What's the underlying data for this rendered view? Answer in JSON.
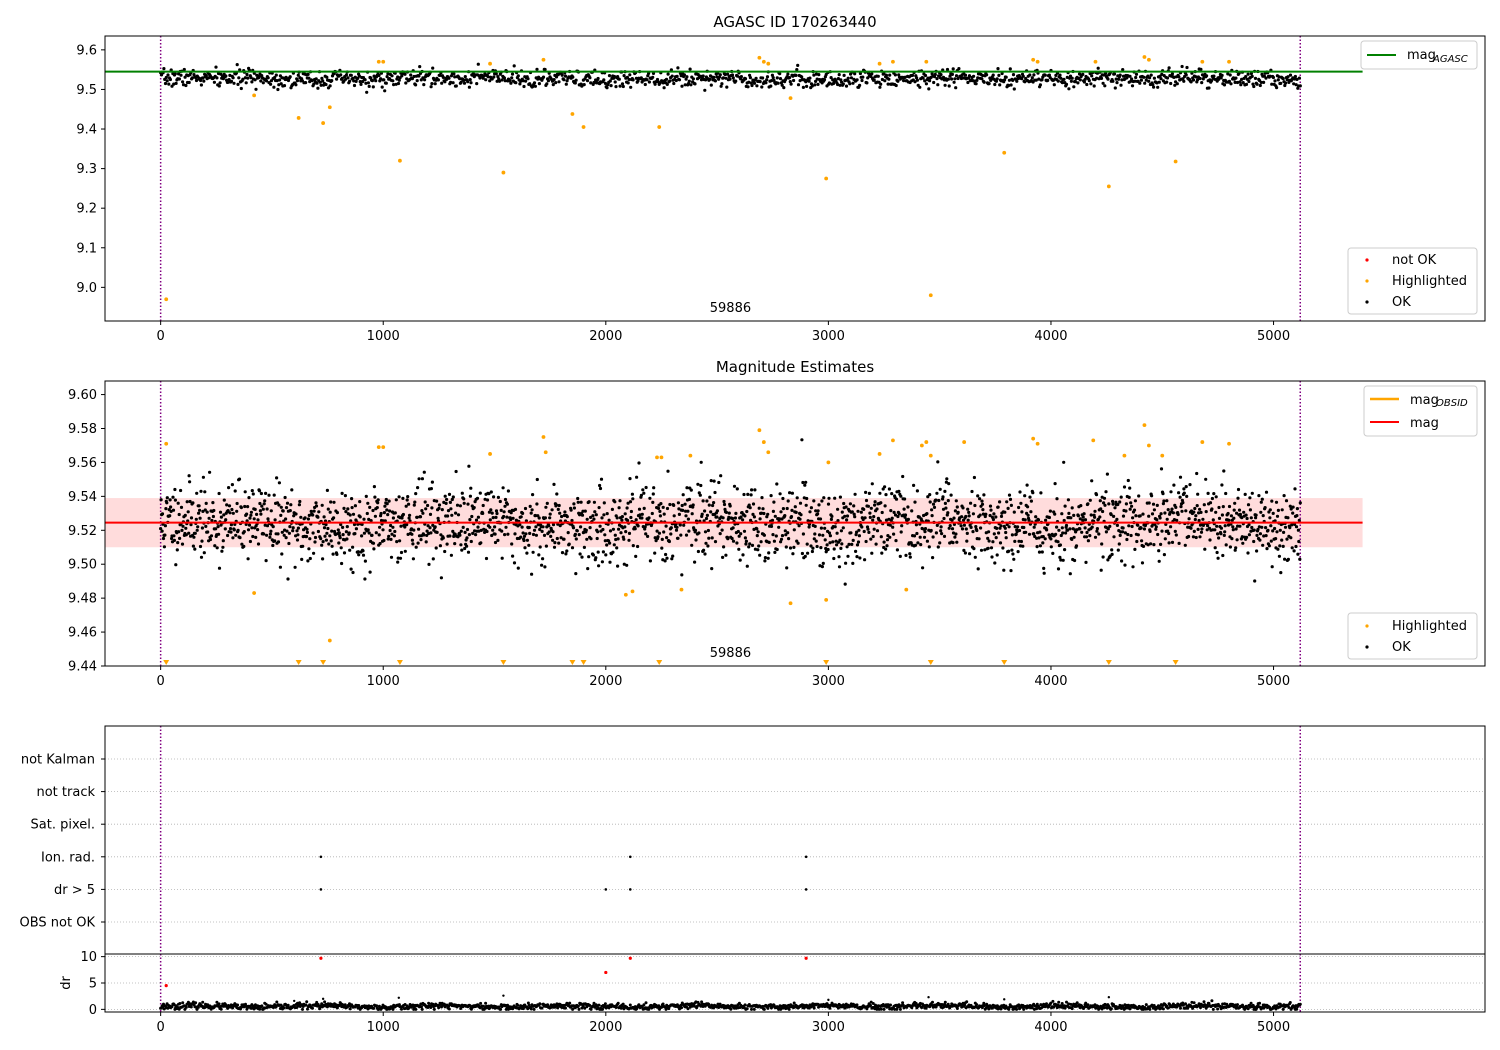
{
  "colors": {
    "ok": "#000000",
    "highlighted": "#ffa500",
    "not_ok": "#ff0000",
    "mag_agasc_line": "#008000",
    "mag_line": "#ff0000",
    "mag_band": "#ffc0c0",
    "obs_boundary": "#800080",
    "grid": "#b0b0b0"
  },
  "chart_data": [
    {
      "type": "scatter",
      "title": "AGASC ID 170263440",
      "xlim": [
        -250,
        5950
      ],
      "ylim": [
        8.915,
        9.635
      ],
      "xticks": [
        0,
        1000,
        2000,
        3000,
        4000,
        5000
      ],
      "yticks": [
        9.0,
        9.1,
        9.2,
        9.3,
        9.4,
        9.5,
        9.6
      ],
      "ytick_labels": [
        "9.0",
        "9.1",
        "9.2",
        "9.3",
        "9.4",
        "9.5",
        "9.6"
      ],
      "obs_boundaries": [
        0,
        5120
      ],
      "obsid_label": "59886",
      "obsid_label_x": 2560,
      "mag_agasc": 9.545,
      "mag_agasc_xrange": [
        -250,
        5400
      ],
      "ok_band": {
        "x_range": [
          0,
          5120
        ],
        "center": 9.527,
        "spread": 0.012,
        "count": 1400,
        "seed": 7
      },
      "highlighted": {
        "x": [
          25,
          420,
          620,
          730,
          760,
          980,
          1000,
          1075,
          1480,
          1540,
          1720,
          1850,
          1900,
          2240,
          2690,
          2710,
          2730,
          2830,
          2990,
          3230,
          3290,
          3440,
          3460,
          3790,
          3920,
          3940,
          4200,
          4260,
          4420,
          4440,
          4560,
          4680,
          4800
        ],
        "y": [
          8.97,
          9.485,
          9.428,
          9.415,
          9.455,
          9.57,
          9.57,
          9.32,
          9.565,
          9.29,
          9.575,
          9.438,
          9.405,
          9.405,
          9.58,
          9.57,
          9.565,
          9.478,
          9.275,
          9.565,
          9.57,
          9.57,
          8.98,
          9.34,
          9.575,
          9.57,
          9.57,
          9.255,
          9.582,
          9.575,
          9.318,
          9.57,
          9.57
        ]
      },
      "legend_lines": [
        {
          "label": "mag",
          "sub": "AGASC",
          "color": "#008000"
        }
      ],
      "legend_points": [
        {
          "label": "not OK",
          "color": "#ff0000"
        },
        {
          "label": "Highlighted",
          "color": "#ffa500"
        },
        {
          "label": "OK",
          "color": "#000000"
        }
      ]
    },
    {
      "type": "scatter",
      "title": "Magnitude Estimates",
      "xlim": [
        -250,
        5950
      ],
      "ylim": [
        9.44,
        9.608
      ],
      "xticks": [
        0,
        1000,
        2000,
        3000,
        4000,
        5000
      ],
      "yticks": [
        9.44,
        9.46,
        9.48,
        9.5,
        9.52,
        9.54,
        9.56,
        9.58,
        9.6
      ],
      "ytick_labels": [
        "9.44",
        "9.46",
        "9.48",
        "9.50",
        "9.52",
        "9.54",
        "9.56",
        "9.58",
        "9.60"
      ],
      "obs_boundaries": [
        0,
        5120
      ],
      "obsid_label": "59886",
      "obsid_label_x": 2560,
      "mag": 9.5245,
      "mag_band": [
        9.51,
        9.539
      ],
      "mag_xrange": [
        -250,
        5400
      ],
      "ok_band": {
        "x_range": [
          0,
          5120
        ],
        "center": 9.524,
        "spread": 0.012,
        "count": 2400,
        "seed": 11
      },
      "highlighted": {
        "x": [
          25,
          420,
          760,
          980,
          1000,
          1480,
          1720,
          1730,
          2090,
          2120,
          2230,
          2250,
          2340,
          2380,
          2690,
          2710,
          2730,
          2830,
          2990,
          3000,
          3230,
          3290,
          3350,
          3420,
          3440,
          3460,
          3610,
          3920,
          3940,
          4190,
          4330,
          4420,
          4440,
          4500,
          4680,
          4800
        ],
        "y": [
          9.571,
          9.483,
          9.455,
          9.569,
          9.569,
          9.565,
          9.575,
          9.566,
          9.482,
          9.484,
          9.563,
          9.563,
          9.485,
          9.564,
          9.579,
          9.572,
          9.566,
          9.477,
          9.479,
          9.56,
          9.565,
          9.573,
          9.485,
          9.57,
          9.572,
          9.564,
          9.572,
          9.574,
          9.571,
          9.573,
          9.564,
          9.582,
          9.57,
          9.564,
          9.572,
          9.571
        ]
      },
      "below_range_x": [
        25,
        620,
        730,
        1075,
        1540,
        1850,
        1900,
        2240,
        2990,
        3460,
        3790,
        4260,
        4560
      ],
      "legend_lines": [
        {
          "label": "mag",
          "sub": "OBSID",
          "color": "#ffa500"
        },
        {
          "label": "mag",
          "sub": "",
          "color": "#ff0000"
        }
      ],
      "legend_points": [
        {
          "label": "Highlighted",
          "color": "#ffa500"
        },
        {
          "label": "OK",
          "color": "#000000"
        }
      ]
    },
    {
      "type": "scatter",
      "title": "",
      "xlim": [
        -250,
        5950
      ],
      "obs_boundaries": [
        0,
        5120
      ],
      "flag_categories": [
        "not Kalman",
        "not track",
        "Sat. pixel.",
        "Ion. rad.",
        "dr > 5",
        "OBS not OK"
      ],
      "flag_points": [
        {
          "x": 720,
          "flag": "Ion. rad."
        },
        {
          "x": 2110,
          "flag": "Ion. rad."
        },
        {
          "x": 2900,
          "flag": "Ion. rad."
        },
        {
          "x": 720,
          "flag": "dr > 5"
        },
        {
          "x": 2000,
          "flag": "dr > 5"
        },
        {
          "x": 2110,
          "flag": "dr > 5"
        },
        {
          "x": 2900,
          "flag": "dr > 5"
        }
      ]
    },
    {
      "type": "scatter",
      "title": "",
      "ylabel": "dr",
      "xlim": [
        -250,
        5950
      ],
      "ylim": [
        -0.5,
        10.5
      ],
      "xticks": [
        0,
        1000,
        2000,
        3000,
        4000,
        5000
      ],
      "yticks": [
        0,
        5,
        10
      ],
      "ytick_labels": [
        "0",
        "5",
        "10"
      ],
      "obs_boundaries": [
        0,
        5120
      ],
      "ok_band": {
        "x_range": [
          0,
          5120
        ],
        "center": 0.55,
        "spread": 0.3,
        "count": 1600,
        "seed": 23
      },
      "red_points": {
        "x": [
          25,
          720,
          2000,
          2110,
          2900
        ],
        "y": [
          4.5,
          9.7,
          7.0,
          9.7,
          9.7
        ]
      },
      "sparse_points": {
        "x": [
          600,
          730,
          1070,
          1540,
          3000,
          3450,
          3790,
          4260
        ],
        "y": [
          1.6,
          2.0,
          2.2,
          2.6,
          1.8,
          2.3,
          1.9,
          2.3
        ]
      }
    }
  ]
}
